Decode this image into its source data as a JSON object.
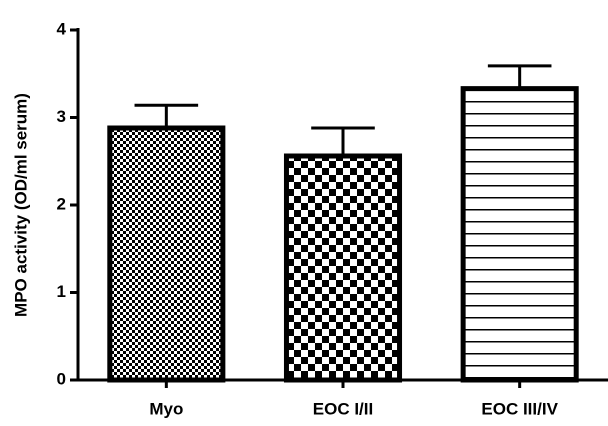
{
  "chart_data": {
    "type": "bar",
    "y_label": "MPO activity (OD/ml serum)",
    "categories": [
      "Myo",
      "EOC I/II",
      "EOC III/IV"
    ],
    "values": [
      2.88,
      2.56,
      3.33
    ],
    "errors": [
      0.26,
      0.32,
      0.26
    ],
    "color": "#000000",
    "ylim": [
      0,
      4
    ],
    "yticks": [
      0,
      1,
      2,
      3,
      4
    ],
    "grid": false
  }
}
